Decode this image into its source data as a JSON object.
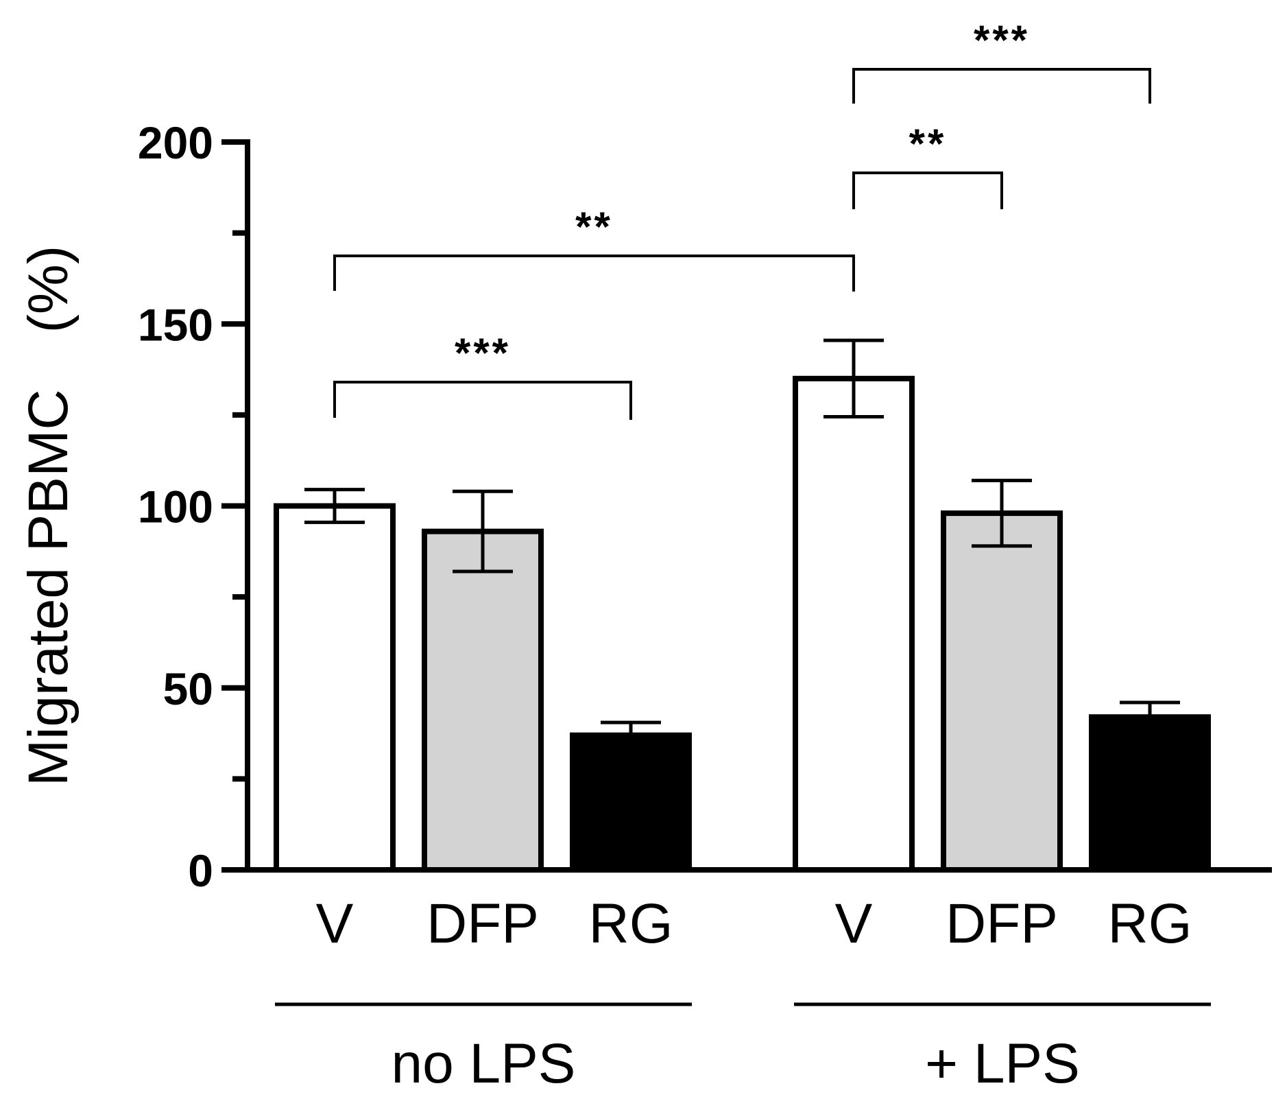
{
  "chart_data": {
    "type": "bar",
    "title": "",
    "xlabel": "",
    "ylabel": "Migrated PBMC　(%)",
    "ylim": [
      0,
      200
    ],
    "yticks": [
      0,
      50,
      100,
      150,
      200
    ],
    "grid": false,
    "legend": "none",
    "groups": [
      {
        "label": "no LPS",
        "categories": [
          "V",
          "DFP",
          "RG"
        ]
      },
      {
        "label": "+ LPS",
        "categories": [
          "V",
          "DFP",
          "RG"
        ]
      }
    ],
    "bars": [
      {
        "group": 0,
        "category": "V",
        "value": 100,
        "error": 4.5,
        "fill": "#ffffff"
      },
      {
        "group": 0,
        "category": "DFP",
        "value": 93,
        "error": 11,
        "fill": "#d3d3d3"
      },
      {
        "group": 0,
        "category": "RG",
        "value": 37,
        "error": 3.5,
        "fill": "#000000"
      },
      {
        "group": 1,
        "category": "V",
        "value": 135,
        "error": 10.5,
        "fill": "#ffffff"
      },
      {
        "group": 1,
        "category": "DFP",
        "value": 98,
        "error": 9,
        "fill": "#d3d3d3"
      },
      {
        "group": 1,
        "category": "RG",
        "value": 42,
        "error": 4,
        "fill": "#000000"
      }
    ],
    "significance": [
      {
        "from": 0,
        "to": 2,
        "label": "***"
      },
      {
        "from": 0,
        "to": 3,
        "label": "**"
      },
      {
        "from": 3,
        "to": 4,
        "label": "**"
      },
      {
        "from": 3,
        "to": 5,
        "label": "***"
      }
    ]
  }
}
